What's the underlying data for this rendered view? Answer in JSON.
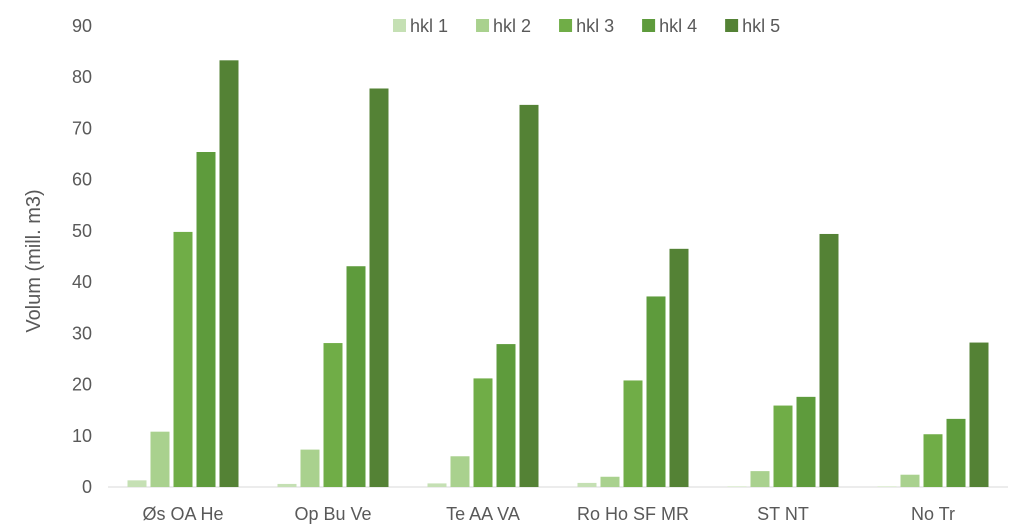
{
  "chart_data": {
    "type": "bar",
    "ylabel": "Volum (mill. m3)",
    "xlabel": "",
    "ylim": [
      0,
      90
    ],
    "yticks": [
      0,
      10,
      20,
      30,
      40,
      50,
      60,
      70,
      80,
      90
    ],
    "grid": false,
    "legend_position": "top",
    "categories": [
      "Øs OA He",
      "Op Bu Ve",
      "Te AA VA",
      "Ro Ho SF MR",
      "ST NT",
      "No Tr"
    ],
    "series": [
      {
        "name": "hkl 1",
        "color": "#c5e0b4",
        "values": [
          1.3,
          0.6,
          0.7,
          0.8,
          0.1,
          0.1
        ]
      },
      {
        "name": "hkl 2",
        "color": "#a9d18e",
        "values": [
          10.8,
          7.3,
          6.0,
          2.0,
          3.1,
          2.4
        ]
      },
      {
        "name": "hkl 3",
        "color": "#70ad47",
        "values": [
          49.8,
          28.1,
          21.2,
          20.8,
          15.9,
          10.3
        ]
      },
      {
        "name": "hkl 4",
        "color": "#5e9b3c",
        "values": [
          65.4,
          43.1,
          27.9,
          37.2,
          17.6,
          13.3
        ]
      },
      {
        "name": "hkl 5",
        "color": "#548235",
        "values": [
          83.3,
          77.8,
          74.6,
          46.5,
          49.4,
          28.2
        ]
      }
    ]
  }
}
